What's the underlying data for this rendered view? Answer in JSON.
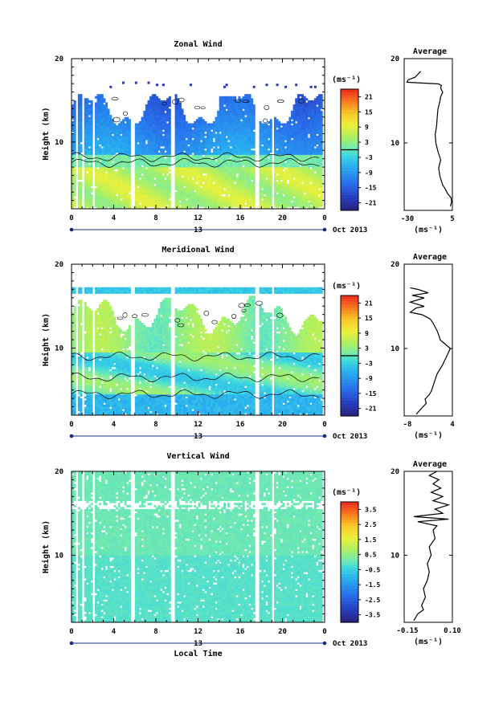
{
  "chart_data": [
    {
      "type": "heatmap",
      "title": "Zonal Wind",
      "ylabel": "Height (km)",
      "ylim": [
        2,
        20
      ],
      "yticks": [
        "20",
        "10"
      ],
      "xlim": [
        0,
        24
      ],
      "xticks": [
        "0",
        "4",
        "8",
        "12",
        "16",
        "20",
        "0"
      ],
      "date_day": "13",
      "date_month": "Oct 2013",
      "colorbar": {
        "unit": "(ms⁻¹)",
        "labels": [
          "21",
          "15",
          "9",
          "3",
          "-3",
          "-9",
          "-15",
          "-21"
        ],
        "range": [
          -24,
          24
        ],
        "zero_line": 0
      },
      "profile": {
        "title": "Average",
        "xlim": [
          -30,
          5
        ],
        "xtick_labels": [
          "-30",
          "5"
        ],
        "ylim": [
          2,
          20
        ],
        "ytick_labels": [
          "20",
          "10"
        ],
        "xlabel": "(ms⁻¹)",
        "points": [
          [
            3.5,
            2.5
          ],
          [
            4.5,
            3.0
          ],
          [
            4.0,
            3.5
          ],
          [
            1.5,
            4.0
          ],
          [
            0.0,
            4.5
          ],
          [
            -2.0,
            5.0
          ],
          [
            -4.0,
            6.0
          ],
          [
            -5.0,
            7.0
          ],
          [
            -3.5,
            8.0
          ],
          [
            -5.5,
            9.0
          ],
          [
            -7.0,
            10.0
          ],
          [
            -7.5,
            11.0
          ],
          [
            -6.5,
            12.0
          ],
          [
            -6.0,
            13.0
          ],
          [
            -5.5,
            14.0
          ],
          [
            -4.0,
            15.0
          ],
          [
            -3.5,
            15.5
          ],
          [
            -2.0,
            16.0
          ],
          [
            -3.5,
            16.5
          ],
          [
            -3.0,
            16.8
          ],
          [
            -5.0,
            17.0
          ],
          [
            -28.0,
            17.2
          ],
          [
            -27.0,
            17.5
          ],
          [
            -22.0,
            17.8
          ],
          [
            -18.0,
            18.5
          ]
        ]
      }
    },
    {
      "type": "heatmap",
      "title": "Meridional Wind",
      "ylabel": "Height (km)",
      "ylim": [
        2,
        20
      ],
      "yticks": [
        "20",
        "10"
      ],
      "xlim": [
        0,
        24
      ],
      "xticks": [
        "0",
        "4",
        "8",
        "12",
        "16",
        "20",
        "0"
      ],
      "date_day": "13",
      "date_month": "Oct 2013",
      "colorbar": {
        "unit": "(ms⁻¹)",
        "labels": [
          "21",
          "15",
          "9",
          "3",
          "-3",
          "-9",
          "-15",
          "-21"
        ],
        "range": [
          -24,
          24
        ],
        "zero_line": 0
      },
      "profile": {
        "title": "Average",
        "xlim": [
          -8,
          4
        ],
        "xtick_labels": [
          "-8",
          "4"
        ],
        "ylim": [
          2,
          20
        ],
        "ytick_labels": [
          "20",
          "10"
        ],
        "xlabel": "(ms⁻¹)",
        "points": [
          [
            -5.0,
            2.2
          ],
          [
            -3.5,
            3.0
          ],
          [
            -2.5,
            3.5
          ],
          [
            -2.8,
            4.0
          ],
          [
            -1.8,
            4.5
          ],
          [
            -1.2,
            5.0
          ],
          [
            -0.5,
            6.0
          ],
          [
            0.2,
            7.0
          ],
          [
            1.5,
            8.0
          ],
          [
            2.5,
            9.0
          ],
          [
            3.5,
            10.0
          ],
          [
            1.0,
            11.0
          ],
          [
            0.3,
            12.0
          ],
          [
            -0.8,
            13.0
          ],
          [
            -1.5,
            13.5
          ],
          [
            -3.5,
            14.0
          ],
          [
            -6.5,
            14.3
          ],
          [
            -5.0,
            14.8
          ],
          [
            -3.0,
            15.0
          ],
          [
            -6.5,
            15.5
          ],
          [
            -3.0,
            16.0
          ],
          [
            -6.0,
            16.3
          ],
          [
            -2.0,
            16.6
          ],
          [
            -4.5,
            17.0
          ],
          [
            -6.5,
            17.2
          ]
        ]
      }
    },
    {
      "type": "heatmap",
      "title": "Vertical Wind",
      "ylabel": "Height (km)",
      "ylim": [
        2,
        20
      ],
      "yticks": [
        "20",
        "10"
      ],
      "xlim": [
        0,
        24
      ],
      "xticks": [
        "0",
        "4",
        "8",
        "12",
        "16",
        "20",
        "0"
      ],
      "date_day": "13",
      "date_month": "Oct 2013",
      "xlabel": "Local Time",
      "colorbar": {
        "unit": "(ms⁻¹)",
        "labels": [
          "3.5",
          "2.5",
          "1.5",
          "0.5",
          "-0.5",
          "-1.5",
          "-2.5",
          "-3.5"
        ],
        "range": [
          -4,
          4
        ],
        "zero_line": null
      },
      "profile": {
        "title": "Average",
        "xlim": [
          -0.15,
          0.1
        ],
        "xtick_labels": [
          "-0.15",
          "0.10"
        ],
        "ylim": [
          2,
          20
        ],
        "ytick_labels": [
          "20",
          "10"
        ],
        "xlabel": "(ms⁻¹)",
        "points": [
          [
            -0.1,
            2.2
          ],
          [
            -0.08,
            3.0
          ],
          [
            -0.05,
            3.5
          ],
          [
            -0.06,
            4.0
          ],
          [
            -0.04,
            5.0
          ],
          [
            -0.05,
            6.0
          ],
          [
            -0.03,
            7.0
          ],
          [
            -0.02,
            8.0
          ],
          [
            -0.03,
            9.0
          ],
          [
            -0.01,
            10.0
          ],
          [
            -0.02,
            11.0
          ],
          [
            0.01,
            12.0
          ],
          [
            0.0,
            13.0
          ],
          [
            0.02,
            13.5
          ],
          [
            -0.08,
            14.0
          ],
          [
            0.08,
            14.3
          ],
          [
            -0.1,
            14.6
          ],
          [
            0.05,
            15.0
          ],
          [
            0.01,
            15.5
          ],
          [
            0.08,
            16.0
          ],
          [
            0.0,
            16.5
          ],
          [
            0.05,
            17.0
          ],
          [
            -0.01,
            17.5
          ],
          [
            0.04,
            18.0
          ],
          [
            0.0,
            18.5
          ],
          [
            0.03,
            19.0
          ],
          [
            -0.02,
            19.5
          ],
          [
            0.02,
            20.0
          ]
        ]
      }
    }
  ]
}
